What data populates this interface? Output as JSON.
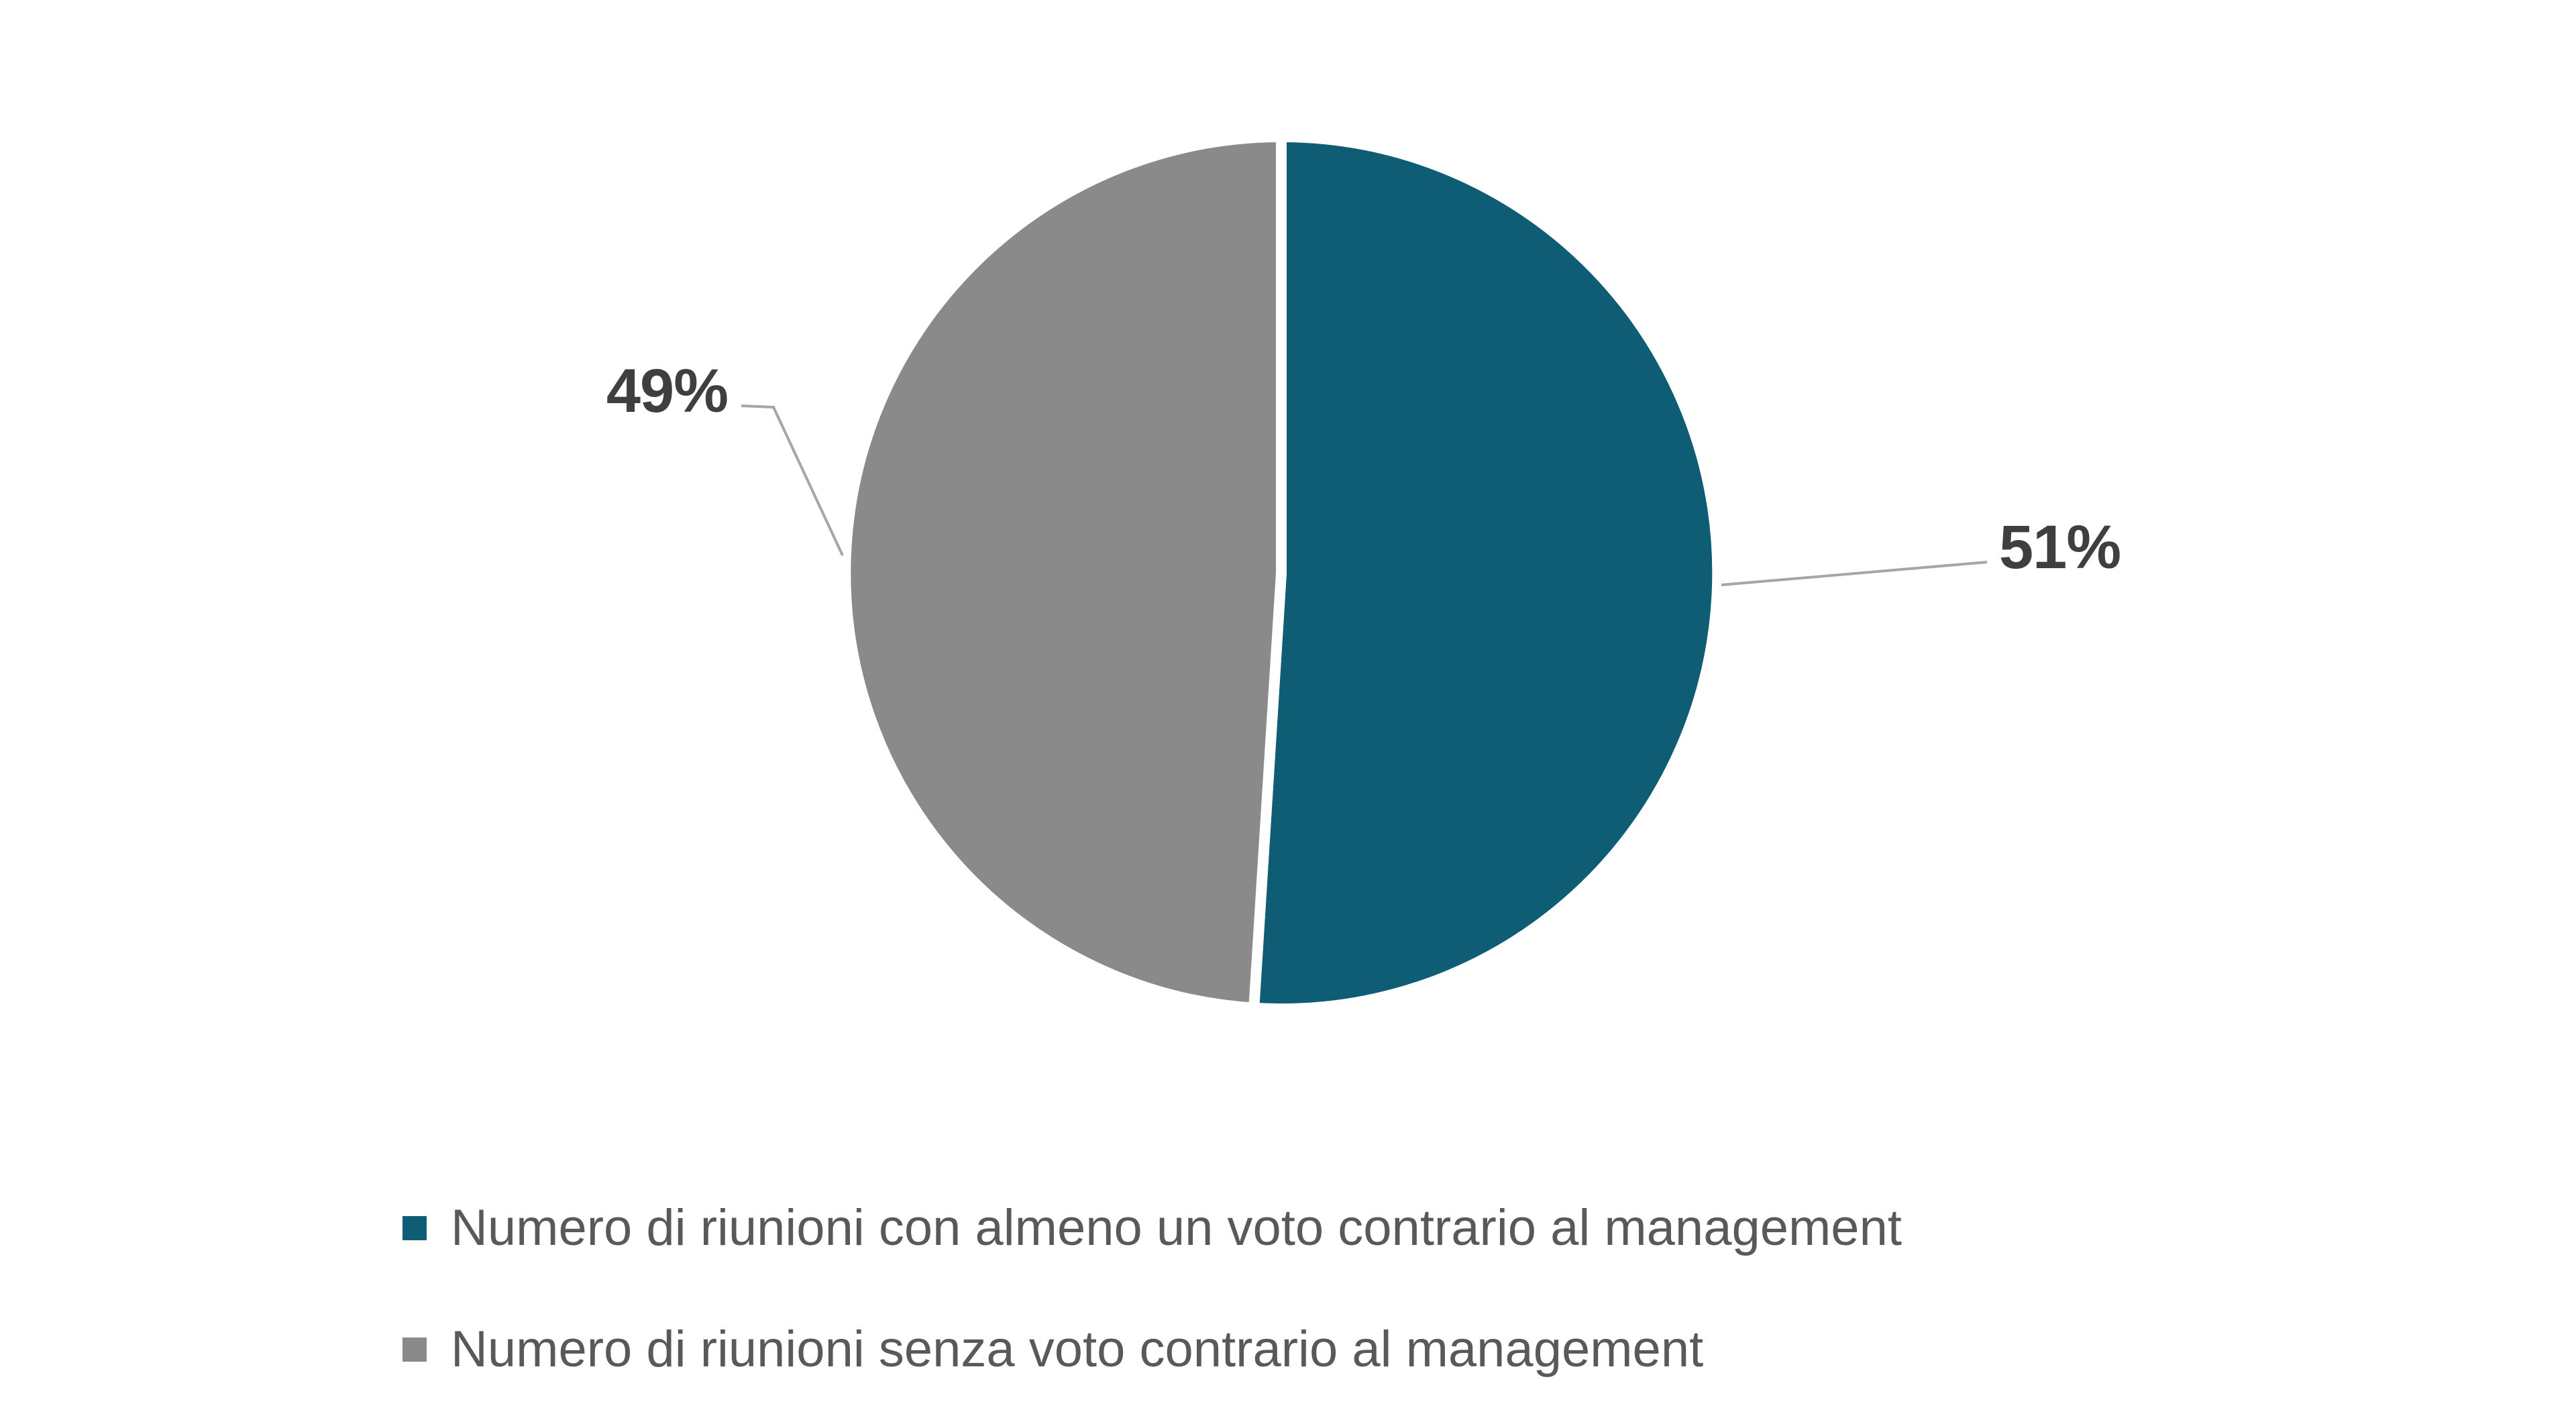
{
  "chart_data": {
    "type": "pie",
    "title": "",
    "direction": "clockwise",
    "start_angle_deg": 0,
    "legend_position": "bottom-left",
    "data_labels_style": "outside-percent-with-leader-lines",
    "slices": [
      {
        "label": "Numero di riunioni con almeno un voto contrario al management",
        "value": 51,
        "percent_label": "51%",
        "color": "#0E5D74"
      },
      {
        "label": "Numero di riunioni senza voto contrario al management",
        "value": 49,
        "percent_label": "49%",
        "color": "#8A8A8A"
      }
    ]
  },
  "colors": {
    "background": "#FFFFFF",
    "slice_separator": "#FFFFFF",
    "leader_line": "#A6A6A6",
    "percent_label_text": "#3F3F3F",
    "legend_text": "#595959"
  }
}
